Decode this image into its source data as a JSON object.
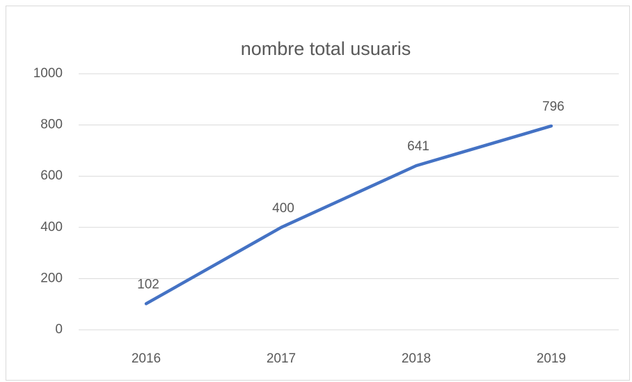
{
  "chart_data": {
    "type": "line",
    "title": "nombre total usuaris",
    "categories": [
      "2016",
      "2017",
      "2018",
      "2019"
    ],
    "values": [
      102,
      400,
      641,
      796
    ],
    "color": "#4472c4",
    "ylim": [
      0,
      1000
    ],
    "yticks": [
      0,
      200,
      400,
      600,
      800,
      1000
    ],
    "grid": true
  }
}
